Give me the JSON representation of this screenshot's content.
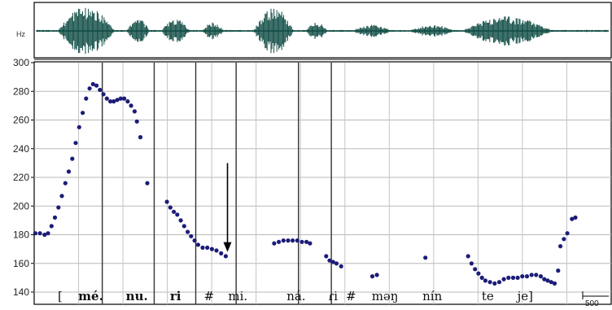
{
  "chart_data": {
    "type": "scatter",
    "waveform_label": "Hz",
    "ylim": [
      140,
      300
    ],
    "y_ticks": [
      "300",
      "280",
      "260",
      "240",
      "220",
      "200",
      "180",
      "160",
      "140"
    ],
    "grid": true,
    "segment_labels": [
      {
        "text": "[",
        "t": 0.045,
        "bold": false
      },
      {
        "text": "mé.",
        "t": 0.098,
        "bold": true
      },
      {
        "text": "nu.",
        "t": 0.178,
        "bold": true
      },
      {
        "text": "ri",
        "t": 0.245,
        "bold": true
      },
      {
        "text": "#",
        "t": 0.303,
        "bold": false
      },
      {
        "text": "mi.",
        "t": 0.353,
        "bold": false
      },
      {
        "text": "ná.",
        "t": 0.454,
        "bold": false
      },
      {
        "text": "ɾi",
        "t": 0.518,
        "bold": false
      },
      {
        "text": "#",
        "t": 0.549,
        "bold": false
      },
      {
        "text": "məŋ",
        "t": 0.608,
        "bold": false
      },
      {
        "text": "nín",
        "t": 0.69,
        "bold": false
      },
      {
        "text": "te",
        "t": 0.786,
        "bold": false
      },
      {
        "text": "je]",
        "t": 0.851,
        "bold": false
      }
    ],
    "boundaries": [
      0.118,
      0.208,
      0.28,
      0.35,
      0.458,
      0.515
    ],
    "scale_bar_label": "500",
    "arrow": {
      "t": 0.335,
      "from": 230,
      "to": 168
    },
    "series": [
      {
        "color": "#1c1c78",
        "points": [
          [
            0.002,
            181
          ],
          [
            0.01,
            181
          ],
          [
            0.018,
            180
          ],
          [
            0.024,
            181
          ],
          [
            0.03,
            186
          ],
          [
            0.036,
            192
          ],
          [
            0.042,
            199
          ],
          [
            0.048,
            207
          ],
          [
            0.054,
            216
          ],
          [
            0.06,
            224
          ],
          [
            0.066,
            233
          ],
          [
            0.072,
            244
          ],
          [
            0.078,
            255
          ],
          [
            0.084,
            265
          ],
          [
            0.09,
            275
          ],
          [
            0.096,
            282
          ],
          [
            0.102,
            285
          ],
          [
            0.108,
            284
          ],
          [
            0.114,
            281
          ],
          [
            0.12,
            278
          ],
          [
            0.126,
            275
          ],
          [
            0.132,
            273
          ],
          [
            0.138,
            273
          ],
          [
            0.144,
            274
          ],
          [
            0.15,
            275
          ],
          [
            0.156,
            275
          ],
          [
            0.162,
            273
          ],
          [
            0.168,
            270
          ],
          [
            0.174,
            266
          ],
          [
            0.178,
            259
          ],
          [
            0.184,
            248
          ],
          [
            0.196,
            216
          ],
          [
            0.23,
            203
          ],
          [
            0.236,
            199
          ],
          [
            0.242,
            196
          ],
          [
            0.248,
            194
          ],
          [
            0.254,
            190
          ],
          [
            0.26,
            186
          ],
          [
            0.266,
            182
          ],
          [
            0.272,
            179
          ],
          [
            0.278,
            176
          ],
          [
            0.284,
            173
          ],
          [
            0.292,
            171
          ],
          [
            0.3,
            171
          ],
          [
            0.308,
            170
          ],
          [
            0.316,
            169
          ],
          [
            0.324,
            167
          ],
          [
            0.332,
            165
          ],
          [
            0.416,
            174
          ],
          [
            0.424,
            175
          ],
          [
            0.432,
            176
          ],
          [
            0.44,
            176
          ],
          [
            0.448,
            176
          ],
          [
            0.456,
            176
          ],
          [
            0.464,
            175
          ],
          [
            0.472,
            175
          ],
          [
            0.478,
            174
          ],
          [
            0.506,
            165
          ],
          [
            0.512,
            162
          ],
          [
            0.518,
            161
          ],
          [
            0.524,
            160
          ],
          [
            0.532,
            158
          ],
          [
            0.586,
            151
          ],
          [
            0.594,
            152
          ],
          [
            0.678,
            164
          ],
          [
            0.752,
            165
          ],
          [
            0.758,
            160
          ],
          [
            0.764,
            156
          ],
          [
            0.77,
            153
          ],
          [
            0.776,
            150
          ],
          [
            0.782,
            148
          ],
          [
            0.79,
            147
          ],
          [
            0.798,
            146
          ],
          [
            0.806,
            147
          ],
          [
            0.814,
            149
          ],
          [
            0.822,
            150
          ],
          [
            0.83,
            150
          ],
          [
            0.838,
            150
          ],
          [
            0.846,
            151
          ],
          [
            0.854,
            151
          ],
          [
            0.862,
            152
          ],
          [
            0.87,
            152
          ],
          [
            0.878,
            151
          ],
          [
            0.884,
            149
          ],
          [
            0.89,
            148
          ],
          [
            0.896,
            147
          ],
          [
            0.902,
            146
          ],
          [
            0.908,
            155
          ],
          [
            0.912,
            172
          ],
          [
            0.918,
            177
          ],
          [
            0.924,
            181
          ],
          [
            0.932,
            191
          ],
          [
            0.938,
            192
          ]
        ]
      }
    ]
  }
}
